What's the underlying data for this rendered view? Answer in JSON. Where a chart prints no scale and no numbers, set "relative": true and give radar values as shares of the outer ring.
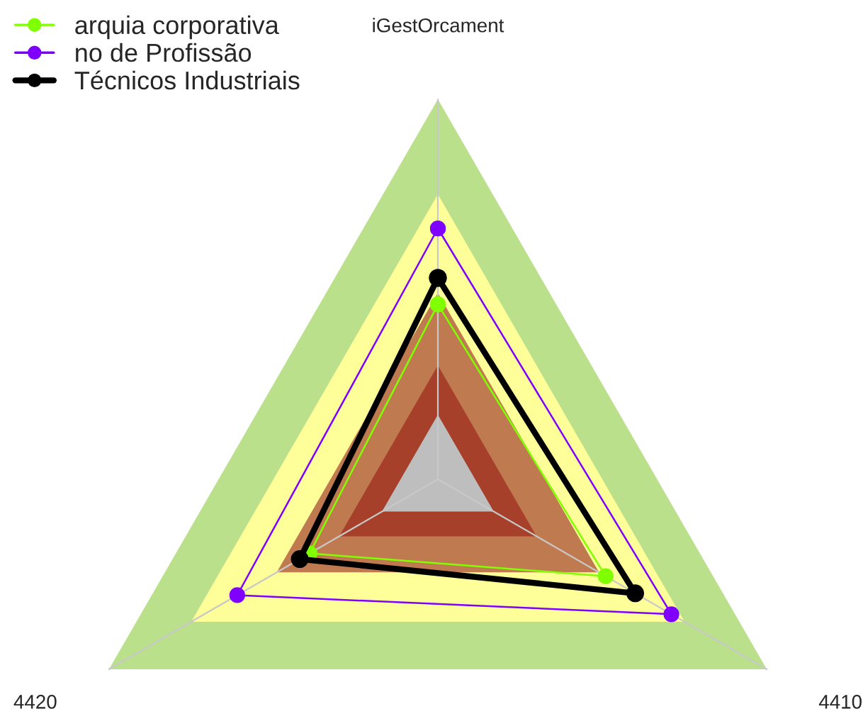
{
  "chart_data": {
    "type": "radar",
    "relative": true,
    "categories": [
      "iGestOrcament",
      "4410",
      "4420"
    ],
    "series": [
      {
        "name": "arquia corporativa",
        "color": "#80ff00",
        "values": [
          0.46,
          0.51,
          0.39
        ]
      },
      {
        "name": "no de Profissão",
        "color": "#8000ff",
        "values": [
          0.66,
          0.71,
          0.61
        ]
      },
      {
        "name": "Técnicos Industriais",
        "color": "#000000",
        "values": [
          0.53,
          0.6,
          0.42
        ]
      }
    ],
    "marker": "circle",
    "line_style": "solid",
    "legend": "top left"
  }
}
